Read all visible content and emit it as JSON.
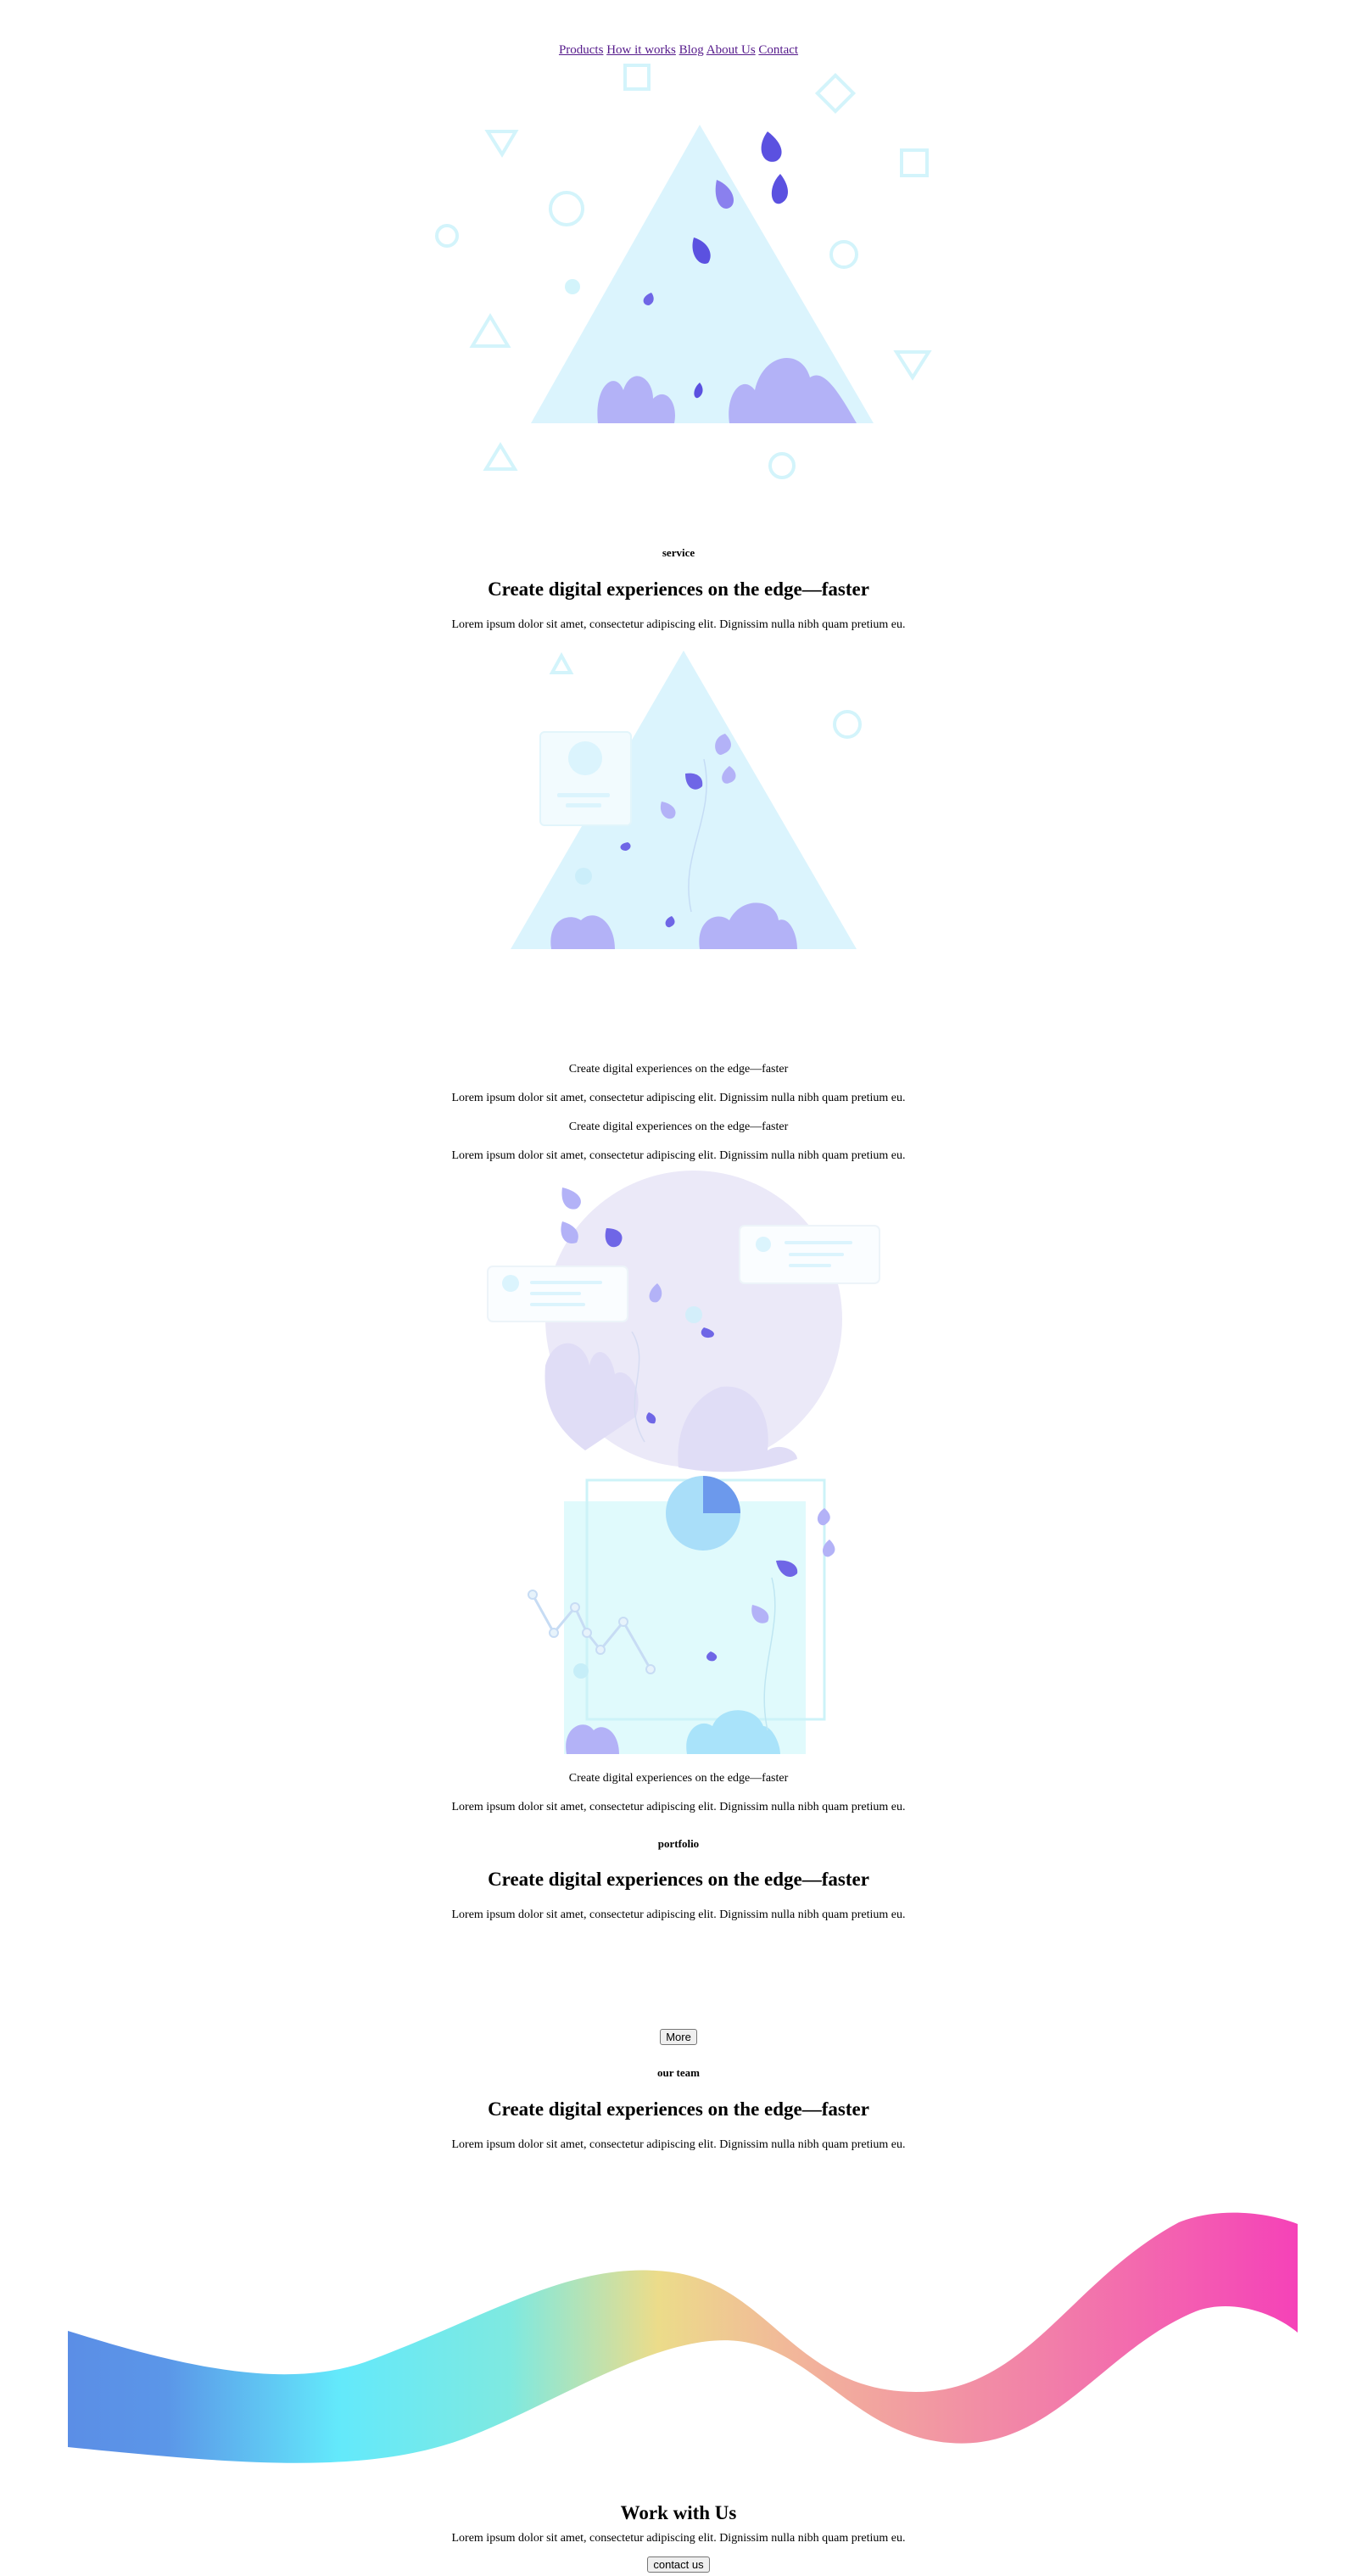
{
  "nav": {
    "items": [
      "Products",
      "How it works",
      "Blog",
      "About Us",
      "Contact"
    ]
  },
  "service": {
    "eyebrow": "service",
    "title": "Create digital experiences on the edge—faster",
    "text": "Lorem ipsum dolor sit amet, consectetur adipiscing elit. Dignissim nulla nibh quam pretium eu."
  },
  "features": [
    {
      "title": "Create digital experiences on the edge—faster",
      "text": "Lorem ipsum dolor sit amet, consectetur adipiscing elit. Dignissim nulla nibh quam pretium eu."
    },
    {
      "title": "Create digital experiences on the edge—faster",
      "text": "Lorem ipsum dolor sit amet, consectetur adipiscing elit. Dignissim nulla nibh quam pretium eu."
    },
    {
      "title": "Create digital experiences on the edge—faster",
      "text": "Lorem ipsum dolor sit amet, consectetur adipiscing elit. Dignissim nulla nibh quam pretium eu."
    }
  ],
  "portfolio": {
    "eyebrow": "portfolio",
    "title": "Create digital experiences on the edge—faster",
    "text": "Lorem ipsum dolor sit amet, consectetur adipiscing elit. Dignissim nulla nibh quam pretium eu.",
    "more_label": "More"
  },
  "team": {
    "eyebrow": "our team",
    "title": "Create digital experiences on the edge—faster",
    "text": "Lorem ipsum dolor sit amet, consectetur adipiscing elit. Dignissim nulla nibh quam pretium eu."
  },
  "cta": {
    "title": "Work with Us",
    "text": "Lorem ipsum dolor sit amet, consectetur adipiscing elit. Dignissim nulla nibh quam pretium eu.",
    "button_label": "contact us"
  },
  "colors": {
    "triangle": "#dbf4fd",
    "leaf_dark": "#5b51e0",
    "leaf_light": "#b3b2f7",
    "outline": "#d3f4fb",
    "wave_start": "#5b8ee6",
    "wave_cyan": "#63e9fb",
    "wave_yellow": "#ecdc8a",
    "wave_pink": "#f27ea9",
    "wave_end": "#f542b8"
  }
}
